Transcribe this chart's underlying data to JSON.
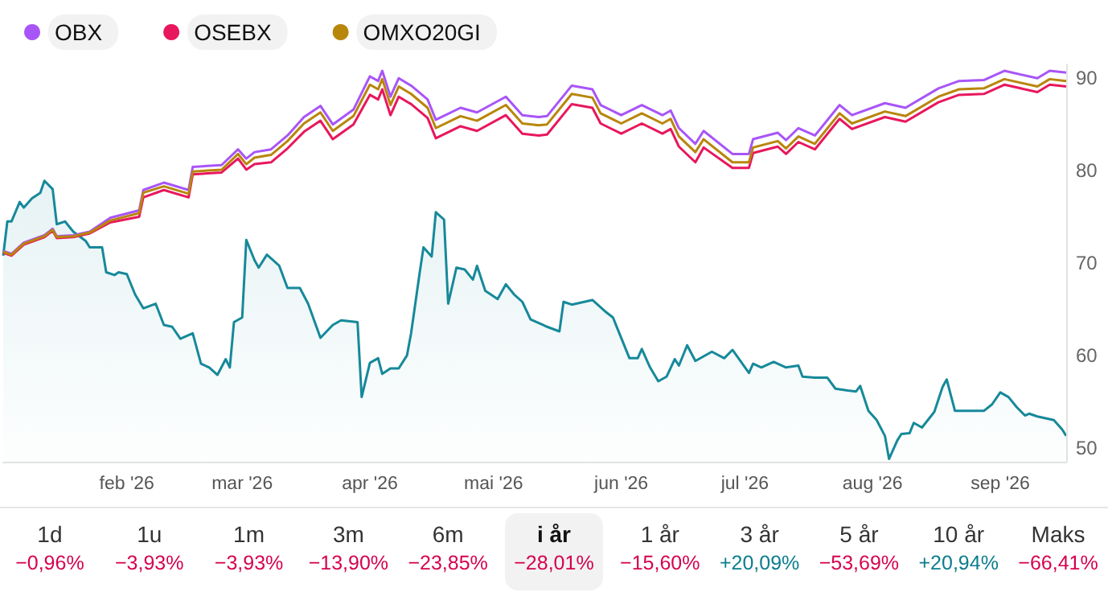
{
  "chart_data": {
    "type": "line",
    "xticks": [
      {
        "value": "2026-02-01",
        "label": "feb '26"
      },
      {
        "value": "2026-03-01",
        "label": "mar '26"
      },
      {
        "value": "2026-04-01",
        "label": "apr '26"
      },
      {
        "value": "2026-05-01",
        "label": "mai '26"
      },
      {
        "value": "2026-06-01",
        "label": "jun '26"
      },
      {
        "value": "2026-07-01",
        "label": "jul '26"
      },
      {
        "value": "2026-08-01",
        "label": "aug '26"
      },
      {
        "value": "2026-09-01",
        "label": "sep '26"
      }
    ],
    "xlim": [
      "2026-01-02",
      "2026-09-17"
    ],
    "ylim": [
      48.5,
      91.5
    ],
    "yticks": [
      50,
      60,
      70,
      80,
      90
    ],
    "grid": false,
    "legend": "top left",
    "marker": "none",
    "line_style": "solid",
    "series": [
      {
        "name": "OBX",
        "color": "#a855f7",
        "x": [
          "2026-01-02",
          "2026-01-04",
          "2026-01-07",
          "2026-01-12",
          "2026-01-14",
          "2026-01-15",
          "2026-01-19",
          "2026-01-23",
          "2026-01-28",
          "2026-02-04",
          "2026-02-05",
          "2026-02-10",
          "2026-02-16",
          "2026-02-17",
          "2026-02-24",
          "2026-02-28",
          "2026-03-02",
          "2026-03-04",
          "2026-03-08",
          "2026-03-12",
          "2026-03-16",
          "2026-03-20",
          "2026-03-23",
          "2026-03-28",
          "2026-04-01",
          "2026-04-03",
          "2026-04-04",
          "2026-04-06",
          "2026-04-08",
          "2026-04-11",
          "2026-04-15",
          "2026-04-17",
          "2026-04-23",
          "2026-04-27",
          "2026-05-04",
          "2026-05-08",
          "2026-05-12",
          "2026-05-14",
          "2026-05-20",
          "2026-05-25",
          "2026-05-27",
          "2026-06-01",
          "2026-06-06",
          "2026-06-11",
          "2026-06-13",
          "2026-06-15",
          "2026-06-19",
          "2026-06-21",
          "2026-06-28",
          "2026-07-02",
          "2026-07-03",
          "2026-07-09",
          "2026-07-11",
          "2026-07-14",
          "2026-07-18",
          "2026-07-24",
          "2026-07-27",
          "2026-08-04",
          "2026-08-09",
          "2026-08-17",
          "2026-08-22",
          "2026-08-28",
          "2026-09-02",
          "2026-09-10",
          "2026-09-13",
          "2026-09-17"
        ],
        "values": [
          71.3,
          71,
          72.2,
          73,
          73.7,
          72.9,
          73,
          73.4,
          74.9,
          75.7,
          77.9,
          78.7,
          77.9,
          80.4,
          80.6,
          82.3,
          81.3,
          82,
          82.3,
          83.8,
          85.8,
          87,
          85,
          86.6,
          90.2,
          89.7,
          90.8,
          88,
          90,
          89.2,
          87.7,
          85.5,
          86.8,
          86.3,
          88,
          86,
          85.8,
          85.9,
          89.2,
          88.8,
          87.1,
          86,
          87.1,
          86,
          86.5,
          84.6,
          82.9,
          84.3,
          81.8,
          81.8,
          83.4,
          84.1,
          83.3,
          84.6,
          83.8,
          87.1,
          86,
          87.3,
          86.8,
          88.9,
          89.7,
          89.8,
          90.8,
          90,
          90.8,
          90.6
        ]
      },
      {
        "name": "OSEBX",
        "color": "#e8175d",
        "x": [
          "2026-01-02",
          "2026-01-04",
          "2026-01-07",
          "2026-01-12",
          "2026-01-14",
          "2026-01-15",
          "2026-01-19",
          "2026-01-23",
          "2026-01-28",
          "2026-02-04",
          "2026-02-05",
          "2026-02-10",
          "2026-02-16",
          "2026-02-17",
          "2026-02-24",
          "2026-02-28",
          "2026-03-02",
          "2026-03-04",
          "2026-03-08",
          "2026-03-12",
          "2026-03-16",
          "2026-03-20",
          "2026-03-23",
          "2026-03-28",
          "2026-04-01",
          "2026-04-03",
          "2026-04-04",
          "2026-04-06",
          "2026-04-08",
          "2026-04-11",
          "2026-04-15",
          "2026-04-17",
          "2026-04-23",
          "2026-04-27",
          "2026-05-04",
          "2026-05-08",
          "2026-05-12",
          "2026-05-14",
          "2026-05-20",
          "2026-05-25",
          "2026-05-27",
          "2026-06-01",
          "2026-06-06",
          "2026-06-11",
          "2026-06-13",
          "2026-06-15",
          "2026-06-19",
          "2026-06-21",
          "2026-06-28",
          "2026-07-02",
          "2026-07-03",
          "2026-07-09",
          "2026-07-11",
          "2026-07-14",
          "2026-07-18",
          "2026-07-24",
          "2026-07-27",
          "2026-08-04",
          "2026-08-09",
          "2026-08-17",
          "2026-08-22",
          "2026-08-28",
          "2026-09-02",
          "2026-09-10",
          "2026-09-13",
          "2026-09-17"
        ],
        "values": [
          71.1,
          70.8,
          72,
          72.8,
          73.5,
          72.7,
          72.8,
          73.2,
          74.4,
          75,
          77.1,
          77.9,
          77.1,
          79.6,
          79.8,
          81.3,
          80.1,
          80.7,
          80.9,
          82.4,
          84.2,
          85.4,
          83.4,
          85,
          88.2,
          87.7,
          88.8,
          86,
          88,
          87.2,
          85.7,
          83.5,
          84.8,
          84.3,
          86,
          84,
          83.8,
          83.9,
          87.2,
          86.8,
          85.1,
          84,
          85.1,
          84,
          84.5,
          82.6,
          80.9,
          82.5,
          80.3,
          80.3,
          81.9,
          82.6,
          81.8,
          83.1,
          82.3,
          85.6,
          84.5,
          85.8,
          85.3,
          87.4,
          88.2,
          88.3,
          89.3,
          88.5,
          89.3,
          89.1
        ]
      },
      {
        "name": "OMXO20GI",
        "color": "#b8860b",
        "x": [
          "2026-01-02",
          "2026-01-04",
          "2026-01-07",
          "2026-01-12",
          "2026-01-14",
          "2026-01-15",
          "2026-01-19",
          "2026-01-23",
          "2026-01-28",
          "2026-02-04",
          "2026-02-05",
          "2026-02-10",
          "2026-02-16",
          "2026-02-17",
          "2026-02-24",
          "2026-02-28",
          "2026-03-02",
          "2026-03-04",
          "2026-03-08",
          "2026-03-12",
          "2026-03-16",
          "2026-03-20",
          "2026-03-23",
          "2026-03-28",
          "2026-04-01",
          "2026-04-03",
          "2026-04-04",
          "2026-04-06",
          "2026-04-08",
          "2026-04-11",
          "2026-04-15",
          "2026-04-17",
          "2026-04-23",
          "2026-04-27",
          "2026-05-04",
          "2026-05-08",
          "2026-05-12",
          "2026-05-14",
          "2026-05-20",
          "2026-05-25",
          "2026-05-27",
          "2026-06-01",
          "2026-06-06",
          "2026-06-11",
          "2026-06-13",
          "2026-06-15",
          "2026-06-19",
          "2026-06-21",
          "2026-06-28",
          "2026-07-02",
          "2026-07-03",
          "2026-07-09",
          "2026-07-11",
          "2026-07-14",
          "2026-07-18",
          "2026-07-24",
          "2026-07-27",
          "2026-08-04",
          "2026-08-09",
          "2026-08-17",
          "2026-08-22",
          "2026-08-28",
          "2026-09-02",
          "2026-09-10",
          "2026-09-13",
          "2026-09-17"
        ],
        "values": [
          71.2,
          70.9,
          72.1,
          72.9,
          73.6,
          72.8,
          72.9,
          73.3,
          74.6,
          75.4,
          77.6,
          78.3,
          77.5,
          79.9,
          80.1,
          81.8,
          80.7,
          81.4,
          81.7,
          83.2,
          85.1,
          86.3,
          84.3,
          85.9,
          89.3,
          88.8,
          89.9,
          87.1,
          89.1,
          88.3,
          86.8,
          84.6,
          85.9,
          85.4,
          87.1,
          85.1,
          84.9,
          85,
          88.3,
          87.9,
          86.2,
          85.1,
          86.2,
          85.1,
          85.6,
          83.7,
          82,
          83.4,
          80.9,
          80.9,
          82.5,
          83.2,
          82.4,
          83.7,
          82.9,
          86.2,
          85.1,
          86.4,
          85.9,
          88,
          88.8,
          88.9,
          89.9,
          89.1,
          89.9,
          89.7
        ]
      },
      {
        "type": "area",
        "color": "#16899a",
        "x": [
          "2026-01-02",
          "2026-01-03",
          "2026-01-04",
          "2026-01-06",
          "2026-01-07",
          "2026-01-09",
          "2026-01-11",
          "2026-01-12",
          "2026-01-14",
          "2026-01-15",
          "2026-01-17",
          "2026-01-19",
          "2026-01-22",
          "2026-01-23",
          "2026-01-26",
          "2026-01-27",
          "2026-01-29",
          "2026-01-30",
          "2026-02-01",
          "2026-02-03",
          "2026-02-05",
          "2026-02-08",
          "2026-02-10",
          "2026-02-12",
          "2026-02-14",
          "2026-02-17",
          "2026-02-19",
          "2026-02-21",
          "2026-02-23",
          "2026-02-25",
          "2026-02-26",
          "2026-02-27",
          "2026-03-01",
          "2026-03-02",
          "2026-03-04",
          "2026-03-05",
          "2026-03-07",
          "2026-03-10",
          "2026-03-12",
          "2026-03-15",
          "2026-03-17",
          "2026-03-20",
          "2026-03-23",
          "2026-03-25",
          "2026-03-29",
          "2026-03-30",
          "2026-04-01",
          "2026-04-03",
          "2026-04-04",
          "2026-04-06",
          "2026-04-08",
          "2026-04-10",
          "2026-04-11",
          "2026-04-13",
          "2026-04-14",
          "2026-04-16",
          "2026-04-17",
          "2026-04-19",
          "2026-04-20",
          "2026-04-22",
          "2026-04-24",
          "2026-04-26",
          "2026-04-27",
          "2026-04-29",
          "2026-05-02",
          "2026-05-04",
          "2026-05-06",
          "2026-05-08",
          "2026-05-10",
          "2026-05-13",
          "2026-05-14",
          "2026-05-17",
          "2026-05-18",
          "2026-05-20",
          "2026-05-25",
          "2026-05-28",
          "2026-05-30",
          "2026-06-03",
          "2026-06-05",
          "2026-06-06",
          "2026-06-08",
          "2026-06-10",
          "2026-06-12",
          "2026-06-14",
          "2026-06-15",
          "2026-06-17",
          "2026-06-19",
          "2026-06-23",
          "2026-06-26",
          "2026-06-28",
          "2026-07-02",
          "2026-07-03",
          "2026-07-05",
          "2026-07-08",
          "2026-07-11",
          "2026-07-14",
          "2026-07-15",
          "2026-07-18",
          "2026-07-21",
          "2026-07-23",
          "2026-07-26",
          "2026-07-28",
          "2026-07-29",
          "2026-07-31",
          "2026-08-02",
          "2026-08-04",
          "2026-08-05",
          "2026-08-07",
          "2026-08-08",
          "2026-08-10",
          "2026-08-11",
          "2026-08-13",
          "2026-08-16",
          "2026-08-18",
          "2026-08-19",
          "2026-08-21",
          "2026-08-24",
          "2026-08-28",
          "2026-08-30",
          "2026-09-01",
          "2026-09-03",
          "2026-09-05",
          "2026-09-07",
          "2026-09-08",
          "2026-09-10",
          "2026-09-14",
          "2026-09-16",
          "2026-09-17"
        ],
        "values": [
          70.8,
          74.5,
          74.5,
          76.6,
          76,
          77,
          77.6,
          78.9,
          78,
          74.2,
          74.5,
          73.4,
          72.4,
          71.7,
          71.7,
          69,
          68.7,
          69,
          68.8,
          66.6,
          65.1,
          65.6,
          63.3,
          63.1,
          61.8,
          62.4,
          59.1,
          58.7,
          57.9,
          59.6,
          58.7,
          63.6,
          64.1,
          72.5,
          70.3,
          69.5,
          70.9,
          69.7,
          67.3,
          67.3,
          65.6,
          61.9,
          63.3,
          63.8,
          63.6,
          55.5,
          59.2,
          59.7,
          58,
          58.6,
          58.6,
          60,
          62.4,
          68.7,
          71.7,
          70.7,
          75.5,
          74.7,
          65.6,
          69.5,
          69.3,
          68.2,
          69.7,
          67,
          66.1,
          67.7,
          66.6,
          65.8,
          63.9,
          63.3,
          63.1,
          62.6,
          65.8,
          65.5,
          66,
          64.8,
          64.1,
          59.7,
          59.7,
          60.7,
          58.7,
          57.2,
          57.7,
          59.6,
          58.9,
          61.1,
          59.4,
          60.4,
          59.7,
          60.6,
          58.1,
          59.1,
          58.7,
          59.3,
          58.7,
          58.9,
          57.7,
          57.6,
          57.6,
          56.4,
          56.2,
          56.1,
          56.7,
          54,
          53,
          51.3,
          48.8,
          50.8,
          51.5,
          51.6,
          52.7,
          52.2,
          53.9,
          56.6,
          57.4,
          54,
          54,
          54,
          54.7,
          56,
          55.5,
          54.4,
          53.5,
          53.7,
          53.4,
          53,
          52,
          51.3
        ]
      }
    ],
    "annotations": [
      "1d",
      "−0,96%",
      "1u",
      "−3,93%",
      "1m",
      "−3,93%",
      "3m",
      "−13,90%",
      "6m",
      "−23,85%",
      "i år",
      "−28,01%",
      "1 år",
      "−15,60%",
      "3 år",
      "+20,09%",
      "5 år",
      "−53,69%",
      "10 år",
      "+20,94%",
      "Maks",
      "−66,41%"
    ]
  }
}
